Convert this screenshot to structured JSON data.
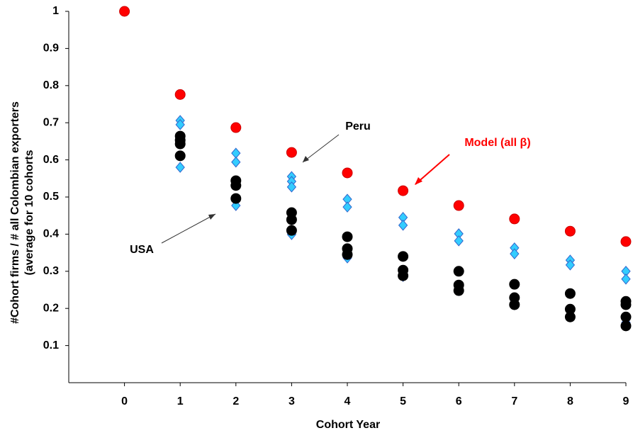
{
  "chart_data": {
    "type": "scatter",
    "xlabel": "Cohort Year",
    "ylabel": [
      "#Cohort firms / # all Colombian exporters",
      "(average for 10 cohorts"
    ],
    "xlim": [
      -1,
      9
    ],
    "xticks": [
      0,
      1,
      2,
      3,
      4,
      5,
      6,
      7,
      8,
      9
    ],
    "ylim": [
      0,
      1
    ],
    "yticks": [
      0.1,
      0.2,
      0.3,
      0.4,
      0.5,
      0.6,
      0.7,
      0.8,
      0.9,
      1
    ],
    "series": [
      {
        "name": "Peru",
        "color": "#33ccff",
        "edge": "#3366cc",
        "marker": "diamond",
        "x": [
          1,
          1,
          1,
          2,
          2,
          2,
          3,
          3,
          3,
          3,
          4,
          4,
          4,
          5,
          5,
          5,
          6,
          6,
          6,
          7,
          7,
          7,
          8,
          8,
          8,
          9,
          9,
          9
        ],
        "values": [
          0.706,
          0.695,
          0.58,
          0.618,
          0.594,
          0.477,
          0.555,
          0.542,
          0.527,
          0.399,
          0.494,
          0.473,
          0.336,
          0.445,
          0.424,
          0.286,
          0.401,
          0.382,
          0.248,
          0.363,
          0.347,
          0.21,
          0.33,
          0.317,
          0.181,
          0.3,
          0.279,
          0.162
        ]
      },
      {
        "name": "USA",
        "color": "#000000",
        "edge": "#000000",
        "marker": "circle",
        "x": [
          1,
          1,
          1,
          1,
          2,
          2,
          2,
          3,
          3,
          3,
          4,
          4,
          4,
          5,
          5,
          5,
          6,
          6,
          6,
          7,
          7,
          7,
          8,
          8,
          8,
          9,
          9,
          9,
          9
        ],
        "values": [
          0.664,
          0.653,
          0.643,
          0.611,
          0.544,
          0.531,
          0.496,
          0.458,
          0.439,
          0.41,
          0.393,
          0.361,
          0.345,
          0.34,
          0.303,
          0.288,
          0.3,
          0.263,
          0.248,
          0.265,
          0.229,
          0.21,
          0.24,
          0.198,
          0.177,
          0.219,
          0.21,
          0.177,
          0.153
        ]
      },
      {
        "name": "Model (all β)",
        "color": "#ff0000",
        "edge": "#cc0000",
        "marker": "circle",
        "x": [
          0,
          1,
          2,
          3,
          4,
          5,
          6,
          7,
          8,
          9
        ],
        "values": [
          1,
          0.776,
          0.687,
          0.62,
          0.565,
          0.517,
          0.477,
          0.441,
          0.408,
          0.38
        ]
      }
    ]
  }
}
